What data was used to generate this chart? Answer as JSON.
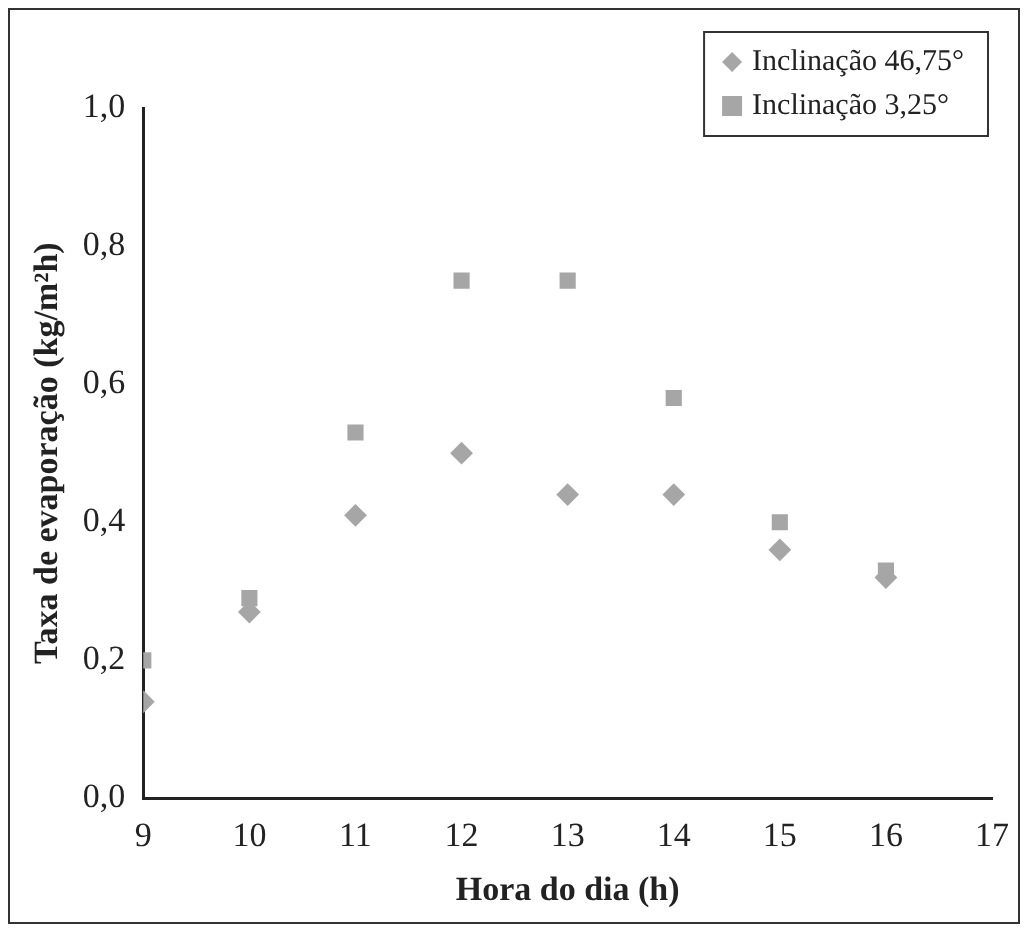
{
  "chart_data": {
    "type": "scatter",
    "xlabel": "Hora do dia (h)",
    "ylabel": "Taxa de evaporação (kg/m²h)",
    "x": [
      9,
      10,
      11,
      12,
      13,
      14,
      15,
      16
    ],
    "series": [
      {
        "name": "Inclinação 46,75°",
        "color": "#a6a6a6",
        "marker": "diamond",
        "values": [
          0.14,
          0.27,
          0.41,
          0.5,
          0.44,
          0.44,
          0.36,
          0.32
        ]
      },
      {
        "name": "Inclinação 3,25°",
        "color": "#a6a6a6",
        "marker": "square",
        "values": [
          0.2,
          0.29,
          0.53,
          0.75,
          0.75,
          0.58,
          0.4,
          0.33
        ]
      }
    ],
    "xlim": [
      9,
      17
    ],
    "xticks": [
      9,
      10,
      11,
      12,
      13,
      14,
      15,
      16,
      17
    ],
    "ylim": [
      0,
      1
    ],
    "yticks": [
      {
        "value": 0,
        "label": "0,0"
      },
      {
        "value": 0.2,
        "label": "0,2"
      },
      {
        "value": 0.4,
        "label": "0,4"
      },
      {
        "value": 0.6,
        "label": "0,6"
      },
      {
        "value": 0.8,
        "label": "0,8"
      },
      {
        "value": 1,
        "label": "1,0"
      }
    ],
    "grid": false,
    "legend": "top right"
  }
}
